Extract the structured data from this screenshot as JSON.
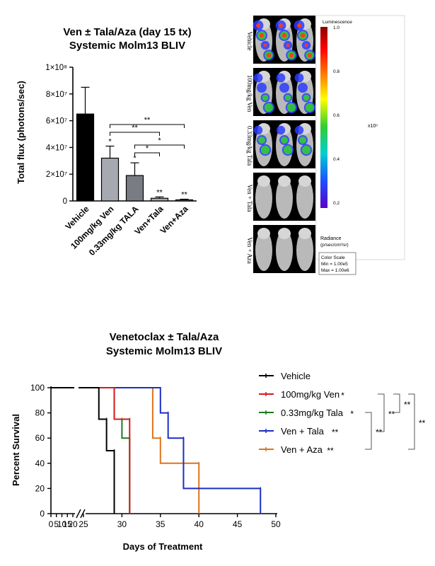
{
  "colors": {
    "vehicle": "#000000",
    "ven": "#a7a9b2",
    "tala": "#7a7c84",
    "ven_line": "#d11b1b",
    "tala_line": "#1e7a1e",
    "ven_tala_line": "#1a2fc4",
    "ven_aza_line": "#e0731c"
  },
  "chart_data": [
    {
      "type": "bar",
      "title": "Ven ± Tala/Aza (day 15 tx)",
      "subtitle": "Systemic Molm13 BLIV",
      "xlabel": "",
      "ylabel": "Total flux (photons/sec)",
      "categories": [
        "Vehicle",
        "100mg/kg Ven",
        "0.33mg/kg TALA",
        "Ven+Tala",
        "Ven+Aza"
      ],
      "values": [
        65000000,
        32000000,
        19000000,
        2000000,
        800000
      ],
      "errors": [
        20000000,
        9000000,
        9500000,
        1000000,
        500000
      ],
      "significance": [
        "",
        "*",
        "*",
        "**",
        "**"
      ],
      "ylim": [
        0,
        100000000
      ],
      "yticks": [
        0,
        20000000,
        40000000,
        60000000,
        80000000,
        100000000
      ],
      "ytick_labels": [
        "0",
        "2×10⁷",
        "4×10⁷",
        "6×10⁷",
        "8×10⁷",
        "1×10⁸"
      ],
      "comparisons": [
        {
          "from": 1,
          "to": 4,
          "label": "**"
        },
        {
          "from": 1,
          "to": 3,
          "label": "**"
        },
        {
          "from": 2,
          "to": 4,
          "label": "*"
        },
        {
          "from": 2,
          "to": 3,
          "label": "*"
        }
      ]
    },
    {
      "type": "heatmap",
      "description_rows": [
        "Vehicle",
        "100mg/kg Ven",
        "0.33mg/kg Tala",
        "Ven + Tala",
        "Ven + Aza"
      ],
      "colorbar_title": "Luminescence",
      "colorbar_ticks": [
        "1.0",
        "0.8",
        "0.6",
        "0.4",
        "0.2"
      ],
      "colorbar_exponent": "x10⁶",
      "radiance_label": "Radiance",
      "radiance_units": "(p/sec/cm²/sr)",
      "color_scale": [
        "Color Scale",
        "Min = 1.00e5",
        "Max = 1.00e6"
      ]
    },
    {
      "type": "line",
      "title": "Venetoclax ± Tala/Aza",
      "subtitle": "Systemic Molm13 BLIV",
      "xlabel": "Days of Treatment",
      "ylabel": "Percent Survival",
      "ylim": [
        0,
        100
      ],
      "yticks": [
        0,
        20,
        40,
        60,
        80,
        100
      ],
      "xticks": [
        0,
        5,
        10,
        15,
        20,
        25,
        30,
        35,
        40,
        45,
        50
      ],
      "x_break": [
        20,
        24
      ],
      "series": [
        {
          "name": "Vehicle",
          "significance": "",
          "color": "#000000",
          "x": [
            0,
            27,
            27,
            28,
            28,
            29,
            29
          ],
          "y": [
            100,
            100,
            75,
            75,
            50,
            50,
            0
          ]
        },
        {
          "name": "100mg/kg Ven",
          "significance": "*",
          "color": "#d11b1b",
          "x": [
            0,
            29,
            29,
            31,
            31
          ],
          "y": [
            100,
            100,
            75,
            75,
            0
          ]
        },
        {
          "name": "0.33mg/kg Tala",
          "significance": "*",
          "color": "#1e7a1e",
          "x": [
            0,
            29,
            29,
            30,
            30,
            31,
            31
          ],
          "y": [
            100,
            100,
            75,
            75,
            60,
            60,
            0
          ]
        },
        {
          "name": "Ven + Tala",
          "significance": "**",
          "color": "#1a2fc4",
          "x": [
            0,
            35,
            35,
            36,
            36,
            38,
            38,
            48,
            48
          ],
          "y": [
            100,
            100,
            80,
            80,
            60,
            60,
            20,
            20,
            0
          ]
        },
        {
          "name": "Ven + Aza",
          "significance": "**",
          "color": "#e0731c",
          "x": [
            0,
            34,
            34,
            35,
            35,
            40,
            40
          ],
          "y": [
            100,
            100,
            60,
            60,
            40,
            40,
            0
          ]
        }
      ],
      "brackets": [
        "**",
        "**",
        "**",
        "**"
      ]
    }
  ]
}
